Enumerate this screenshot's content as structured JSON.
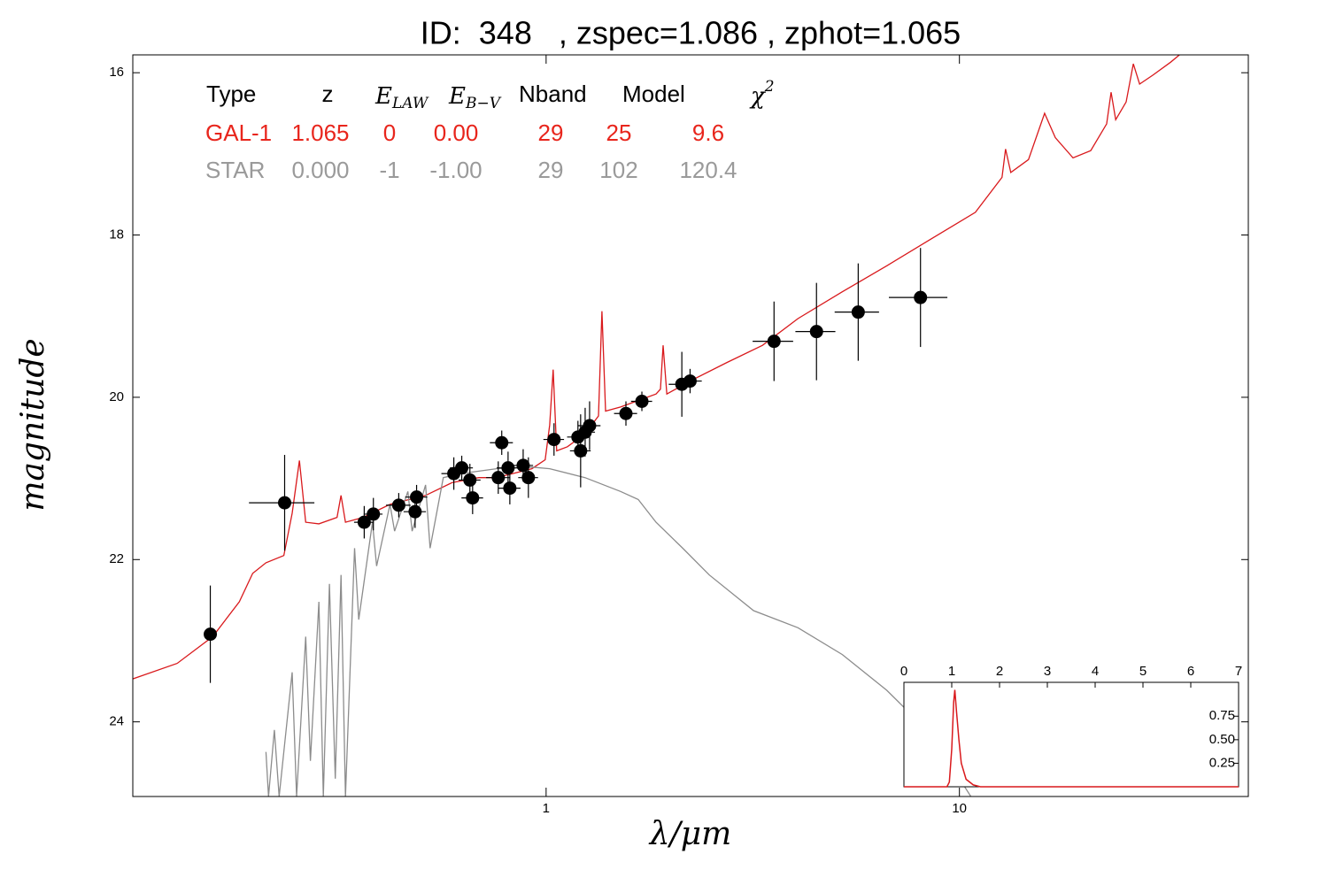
{
  "chart_data": [
    {
      "type": "errorbar",
      "title": "ID:  348   , zspec=1.086 , zphot=1.065",
      "x_label": "λ/μm",
      "y_label": "magnitude",
      "x_log": true,
      "y_inverted": true,
      "xlim": [
        0.1,
        50
      ],
      "xticks": [
        1,
        10
      ],
      "ylim": [
        15.78,
        24.92
      ],
      "yticks": [
        16,
        18,
        20,
        22,
        24
      ],
      "table": {
        "header": [
          "Type",
          "z",
          {
            "text": "E",
            "sub": "LAW"
          },
          {
            "text": "E",
            "sub": "B−V"
          },
          "Nband",
          "Model",
          {
            "text": "χ",
            "sup": "2"
          }
        ],
        "rows": [
          {
            "color": "#e8251c",
            "cells": [
              "GAL-1",
              "1.065",
              "0",
              "0.00",
              "29",
              "25",
              "9.6"
            ]
          },
          {
            "color": "#9a9a9a",
            "cells": [
              "STAR",
              "0.000",
              "-1",
              "-1.00",
              "29",
              "102",
              "120.4"
            ]
          }
        ]
      },
      "series": [
        {
          "style": "line",
          "color": "#d9191c",
          "x": [
            0.1,
            0.128,
            0.156,
            0.181,
            0.195,
            0.21,
            0.232,
            0.243,
            0.253,
            0.262,
            0.282,
            0.312,
            0.319,
            0.327,
            0.361,
            0.419,
            0.511,
            0.593,
            0.687,
            0.759,
            0.924,
            0.995,
            1.02,
            1.04,
            1.061,
            1.126,
            1.242,
            1.339,
            1.365,
            1.393,
            1.514,
            1.845,
            1.891,
            1.919,
            1.959,
            2.249,
            2.741,
            3.339,
            4.068,
            5.207,
            6.668,
            8.535,
            10.93,
            12.68,
            12.93,
            13.31,
            14.69,
            16.07,
            17.06,
            18.83,
            20.78,
            22.71,
            23.28,
            23.88,
            25.31,
            26.34,
            27.28,
            29.38,
            32.43,
            34.07
          ],
          "values": [
            23.47,
            23.28,
            22.95,
            22.52,
            22.17,
            22.04,
            21.95,
            21.43,
            20.78,
            21.54,
            21.56,
            21.48,
            21.21,
            21.54,
            21.48,
            21.32,
            21.21,
            21.05,
            20.99,
            20.99,
            20.88,
            20.77,
            20.34,
            19.66,
            20.66,
            20.61,
            20.45,
            20.23,
            18.94,
            20.17,
            20.12,
            19.96,
            19.9,
            19.36,
            19.96,
            19.79,
            19.57,
            19.36,
            19.03,
            18.7,
            18.38,
            18.05,
            17.72,
            17.29,
            16.94,
            17.23,
            17.07,
            16.5,
            16.8,
            17.05,
            16.96,
            16.63,
            16.24,
            16.58,
            16.36,
            15.89,
            16.14,
            16.03,
            15.87,
            15.78
          ]
        },
        {
          "style": "line",
          "color": "#8c8c8c",
          "x": [
            0.21,
            0.213,
            0.22,
            0.226,
            0.243,
            0.249,
            0.262,
            0.269,
            0.282,
            0.289,
            0.299,
            0.309,
            0.319,
            0.327,
            0.344,
            0.352,
            0.38,
            0.389,
            0.419,
            0.43,
            0.463,
            0.474,
            0.511,
            0.524,
            0.564,
            0.622,
            0.759,
            0.924,
            1.02,
            1.242,
            1.514,
            1.671,
            1.845,
            2.14,
            2.483,
            3.177,
            4.068,
            5.207,
            6.668,
            8.535,
            10.66
          ],
          "values": [
            24.37,
            24.92,
            24.1,
            24.92,
            23.39,
            24.92,
            22.95,
            24.48,
            22.52,
            24.92,
            22.3,
            24.7,
            22.19,
            24.92,
            21.86,
            22.74,
            21.54,
            22.08,
            21.32,
            21.65,
            21.16,
            21.65,
            21.08,
            21.86,
            20.99,
            20.94,
            20.88,
            20.86,
            20.88,
            20.99,
            21.16,
            21.26,
            21.54,
            21.86,
            22.19,
            22.63,
            22.84,
            23.17,
            23.61,
            24.15,
            24.92
          ]
        },
        {
          "style": "points",
          "color": "#000000",
          "x": [
            0.154,
            0.233,
            0.363,
            0.382,
            0.44,
            0.486,
            0.482,
            0.598,
            0.625,
            0.654,
            0.664,
            0.766,
            0.781,
            0.809,
            0.817,
            0.88,
            0.906,
            1.045,
            1.194,
            1.212,
            1.243,
            1.274,
            1.56,
            1.705,
            2.13,
            2.23,
            3.56,
            4.51,
            5.69,
            8.05
          ],
          "values": [
            22.92,
            21.3,
            21.54,
            21.44,
            21.33,
            21.23,
            21.41,
            20.94,
            20.87,
            21.02,
            21.24,
            20.99,
            20.56,
            20.87,
            21.12,
            20.84,
            20.99,
            20.52,
            20.49,
            20.66,
            20.43,
            20.35,
            20.2,
            20.05,
            19.84,
            19.8,
            19.31,
            19.19,
            18.95,
            18.77
          ],
          "yerr": [
            0.6,
            0.59,
            0.2,
            0.2,
            0.15,
            0.15,
            0.2,
            0.2,
            0.15,
            0.2,
            0.2,
            0.2,
            0.15,
            0.2,
            0.2,
            0.2,
            0.25,
            0.2,
            0.2,
            0.45,
            0.3,
            0.3,
            0.15,
            0.12,
            0.4,
            0.15,
            0.49,
            0.6,
            0.6,
            0.61
          ],
          "xerr": [
            0,
            0.042,
            0.02,
            0.02,
            0.03,
            0.03,
            0.03,
            0.04,
            0.04,
            0.04,
            0.04,
            0.05,
            0.05,
            0.05,
            0.05,
            0.05,
            0.05,
            0.06,
            0.07,
            0.07,
            0.07,
            0.08,
            0.1,
            0.1,
            0.15,
            0.15,
            0.4,
            0.5,
            0.7,
            1.3
          ]
        }
      ]
    },
    {
      "type": "line",
      "xlim": [
        0,
        7
      ],
      "xticks": [
        0,
        1,
        2,
        3,
        4,
        5,
        6,
        7
      ],
      "ylim": [
        0,
        1.11
      ],
      "yticks": [
        0.25,
        {
          "value": 0.5,
          "label": "0.50"
        },
        0.75
      ],
      "color": "#d9191c",
      "x": [
        0,
        0.9,
        0.95,
        1.0,
        1.04,
        1.065,
        1.1,
        1.15,
        1.2,
        1.3,
        1.45,
        1.6,
        7
      ],
      "values": [
        0,
        0,
        0.05,
        0.4,
        0.9,
        1.03,
        0.8,
        0.5,
        0.25,
        0.08,
        0.02,
        0,
        0
      ]
    }
  ]
}
